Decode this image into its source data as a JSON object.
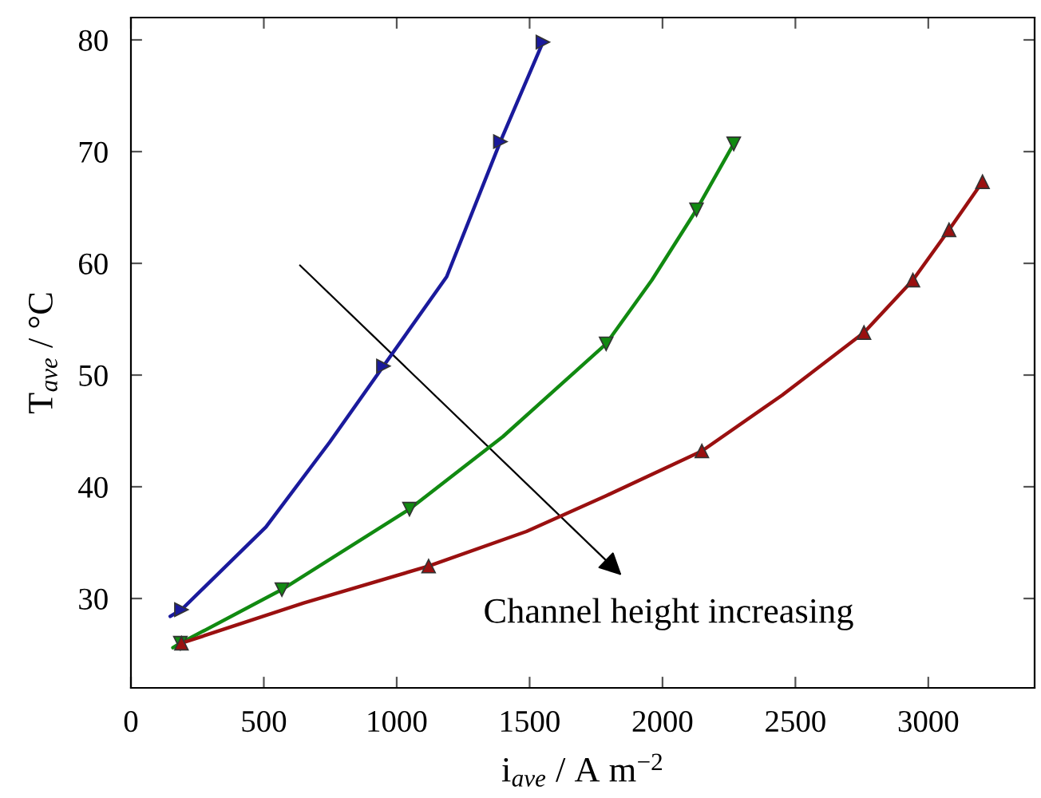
{
  "chart_data": {
    "type": "line",
    "xlabel": "i$_{ave}$ / A m$^{−2}$",
    "ylabel": "T$_{ave}$ / °C",
    "annotations": [
      "Channel height increasing"
    ],
    "xlim": [
      0,
      3400
    ],
    "ylim": [
      22,
      82
    ],
    "xticks": [
      0,
      500,
      1000,
      1500,
      2000,
      2500,
      3000
    ],
    "yticks": [
      30,
      40,
      50,
      60,
      70,
      80
    ],
    "grid": false,
    "legend": false,
    "line_style": "solid",
    "series": [
      {
        "color": "#1a1a9c",
        "marker": "none",
        "x": [
          148,
          190,
          508,
          748,
          950,
          1188,
          1390,
          1550
        ],
        "values": [
          28.4,
          29.0,
          36.4,
          44.0,
          50.8,
          58.8,
          70.9,
          79.8
        ]
      },
      {
        "type": "scatter",
        "color": "#1a1a9c",
        "marker": "triangle_right",
        "x": [
          190,
          950,
          1390,
          1550
        ],
        "values": [
          29.0,
          50.8,
          70.9,
          79.8
        ]
      },
      {
        "color": "#118a11",
        "marker": "none",
        "x": [
          158,
          186,
          568,
          1048,
          1400,
          1788,
          1960,
          2128,
          2268
        ],
        "values": [
          25.6,
          26.0,
          30.8,
          38.0,
          44.5,
          52.8,
          58.5,
          64.8,
          70.7
        ]
      },
      {
        "type": "scatter",
        "color": "#118a11",
        "marker": "triangle_down",
        "x": [
          186,
          568,
          1048,
          1788,
          2128,
          2268
        ],
        "values": [
          26.0,
          30.8,
          38.0,
          52.8,
          64.8,
          70.7
        ]
      },
      {
        "color": "#9a1010",
        "marker": "none",
        "x": [
          190,
          650,
          1120,
          1488,
          1788,
          2148,
          2450,
          2758,
          2942,
          3078,
          3204
        ],
        "values": [
          26.0,
          29.6,
          32.9,
          36.0,
          39.2,
          43.2,
          48.2,
          53.8,
          58.5,
          63.0,
          67.3
        ]
      },
      {
        "type": "scatter",
        "color": "#9a1010",
        "marker": "triangle",
        "x": [
          190,
          1120,
          2148,
          2758,
          2942,
          3078,
          3204
        ],
        "values": [
          26.0,
          32.9,
          43.2,
          53.8,
          58.5,
          63.0,
          67.3
        ]
      }
    ]
  }
}
